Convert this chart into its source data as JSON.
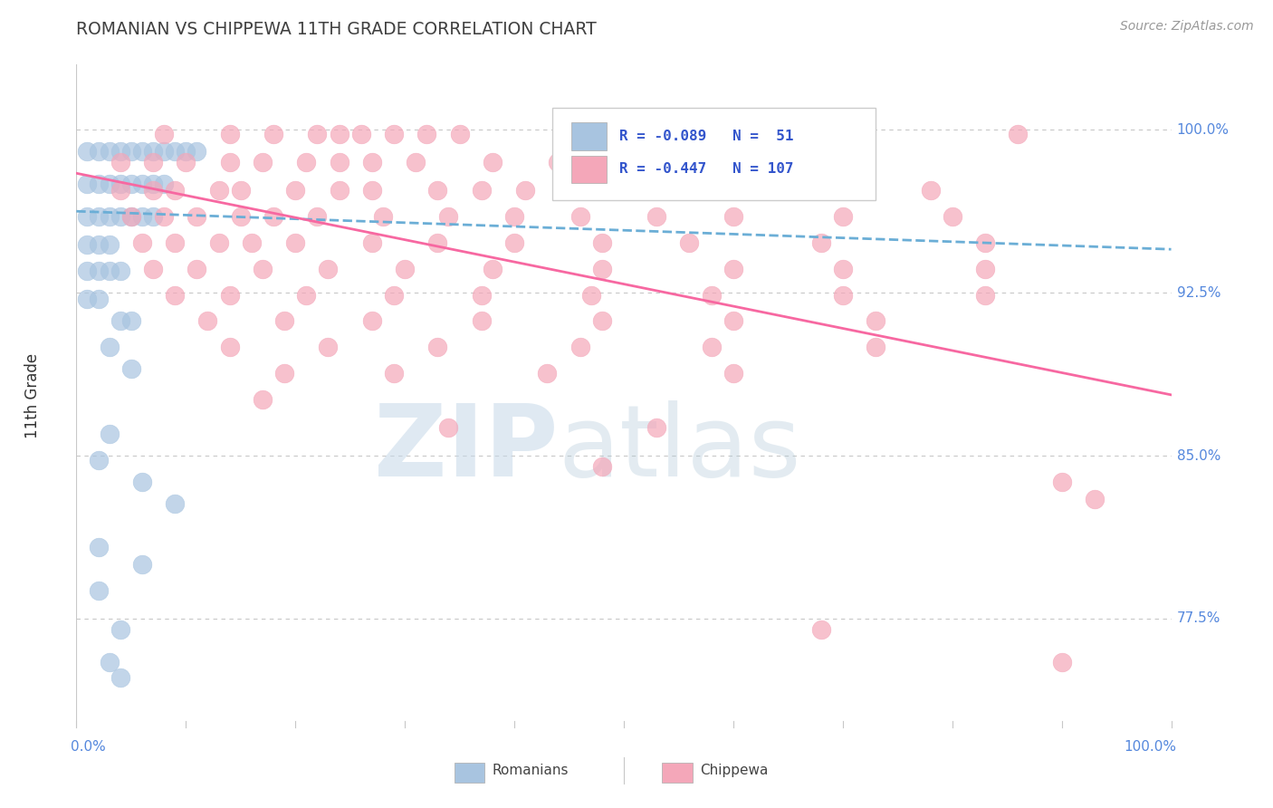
{
  "title": "ROMANIAN VS CHIPPEWA 11TH GRADE CORRELATION CHART",
  "source": "Source: ZipAtlas.com",
  "ylabel": "11th Grade",
  "y_tick_vals": [
    0.775,
    0.85,
    0.925,
    1.0
  ],
  "y_tick_labels": [
    "77.5%",
    "85.0%",
    "92.5%",
    "100.0%"
  ],
  "xlim": [
    0.0,
    1.0
  ],
  "ylim": [
    0.725,
    1.03
  ],
  "legend_romanian_R": "-0.089",
  "legend_romanian_N": "51",
  "legend_chippewa_R": "-0.447",
  "legend_chippewa_N": "107",
  "romanian_color": "#a8c4e0",
  "chippewa_color": "#f4a7b9",
  "romanian_line_color": "#6baed6",
  "chippewa_line_color": "#f768a1",
  "background_color": "#ffffff",
  "grid_color": "#c8c8c8",
  "title_color": "#404040",
  "axis_color": "#888888",
  "tick_label_color": "#5588dd",
  "romanian_scatter": [
    [
      0.01,
      0.99
    ],
    [
      0.02,
      0.99
    ],
    [
      0.03,
      0.99
    ],
    [
      0.04,
      0.99
    ],
    [
      0.05,
      0.99
    ],
    [
      0.06,
      0.99
    ],
    [
      0.07,
      0.99
    ],
    [
      0.08,
      0.99
    ],
    [
      0.09,
      0.99
    ],
    [
      0.1,
      0.99
    ],
    [
      0.11,
      0.99
    ],
    [
      0.01,
      0.975
    ],
    [
      0.02,
      0.975
    ],
    [
      0.03,
      0.975
    ],
    [
      0.04,
      0.975
    ],
    [
      0.05,
      0.975
    ],
    [
      0.06,
      0.975
    ],
    [
      0.07,
      0.975
    ],
    [
      0.08,
      0.975
    ],
    [
      0.01,
      0.96
    ],
    [
      0.02,
      0.96
    ],
    [
      0.03,
      0.96
    ],
    [
      0.04,
      0.96
    ],
    [
      0.05,
      0.96
    ],
    [
      0.06,
      0.96
    ],
    [
      0.07,
      0.96
    ],
    [
      0.01,
      0.947
    ],
    [
      0.02,
      0.947
    ],
    [
      0.03,
      0.947
    ],
    [
      0.01,
      0.935
    ],
    [
      0.02,
      0.935
    ],
    [
      0.03,
      0.935
    ],
    [
      0.04,
      0.935
    ],
    [
      0.01,
      0.922
    ],
    [
      0.02,
      0.922
    ],
    [
      0.04,
      0.912
    ],
    [
      0.05,
      0.912
    ],
    [
      0.03,
      0.9
    ],
    [
      0.05,
      0.89
    ],
    [
      0.03,
      0.86
    ],
    [
      0.02,
      0.848
    ],
    [
      0.06,
      0.838
    ],
    [
      0.09,
      0.828
    ],
    [
      0.02,
      0.808
    ],
    [
      0.06,
      0.8
    ],
    [
      0.02,
      0.788
    ],
    [
      0.04,
      0.77
    ],
    [
      0.03,
      0.755
    ],
    [
      0.04,
      0.748
    ]
  ],
  "chippewa_scatter": [
    [
      0.08,
      0.998
    ],
    [
      0.14,
      0.998
    ],
    [
      0.18,
      0.998
    ],
    [
      0.22,
      0.998
    ],
    [
      0.24,
      0.998
    ],
    [
      0.26,
      0.998
    ],
    [
      0.29,
      0.998
    ],
    [
      0.32,
      0.998
    ],
    [
      0.35,
      0.998
    ],
    [
      0.52,
      0.998
    ],
    [
      0.86,
      0.998
    ],
    [
      0.04,
      0.985
    ],
    [
      0.07,
      0.985
    ],
    [
      0.1,
      0.985
    ],
    [
      0.14,
      0.985
    ],
    [
      0.17,
      0.985
    ],
    [
      0.21,
      0.985
    ],
    [
      0.24,
      0.985
    ],
    [
      0.27,
      0.985
    ],
    [
      0.31,
      0.985
    ],
    [
      0.38,
      0.985
    ],
    [
      0.44,
      0.985
    ],
    [
      0.48,
      0.985
    ],
    [
      0.58,
      0.985
    ],
    [
      0.68,
      0.985
    ],
    [
      0.04,
      0.972
    ],
    [
      0.07,
      0.972
    ],
    [
      0.09,
      0.972
    ],
    [
      0.13,
      0.972
    ],
    [
      0.15,
      0.972
    ],
    [
      0.2,
      0.972
    ],
    [
      0.24,
      0.972
    ],
    [
      0.27,
      0.972
    ],
    [
      0.33,
      0.972
    ],
    [
      0.37,
      0.972
    ],
    [
      0.41,
      0.972
    ],
    [
      0.5,
      0.972
    ],
    [
      0.63,
      0.972
    ],
    [
      0.78,
      0.972
    ],
    [
      0.05,
      0.96
    ],
    [
      0.08,
      0.96
    ],
    [
      0.11,
      0.96
    ],
    [
      0.15,
      0.96
    ],
    [
      0.18,
      0.96
    ],
    [
      0.22,
      0.96
    ],
    [
      0.28,
      0.96
    ],
    [
      0.34,
      0.96
    ],
    [
      0.4,
      0.96
    ],
    [
      0.46,
      0.96
    ],
    [
      0.53,
      0.96
    ],
    [
      0.6,
      0.96
    ],
    [
      0.7,
      0.96
    ],
    [
      0.8,
      0.96
    ],
    [
      0.06,
      0.948
    ],
    [
      0.09,
      0.948
    ],
    [
      0.13,
      0.948
    ],
    [
      0.16,
      0.948
    ],
    [
      0.2,
      0.948
    ],
    [
      0.27,
      0.948
    ],
    [
      0.33,
      0.948
    ],
    [
      0.4,
      0.948
    ],
    [
      0.48,
      0.948
    ],
    [
      0.56,
      0.948
    ],
    [
      0.68,
      0.948
    ],
    [
      0.83,
      0.948
    ],
    [
      0.07,
      0.936
    ],
    [
      0.11,
      0.936
    ],
    [
      0.17,
      0.936
    ],
    [
      0.23,
      0.936
    ],
    [
      0.3,
      0.936
    ],
    [
      0.38,
      0.936
    ],
    [
      0.48,
      0.936
    ],
    [
      0.6,
      0.936
    ],
    [
      0.7,
      0.936
    ],
    [
      0.83,
      0.936
    ],
    [
      0.09,
      0.924
    ],
    [
      0.14,
      0.924
    ],
    [
      0.21,
      0.924
    ],
    [
      0.29,
      0.924
    ],
    [
      0.37,
      0.924
    ],
    [
      0.47,
      0.924
    ],
    [
      0.58,
      0.924
    ],
    [
      0.7,
      0.924
    ],
    [
      0.83,
      0.924
    ],
    [
      0.12,
      0.912
    ],
    [
      0.19,
      0.912
    ],
    [
      0.27,
      0.912
    ],
    [
      0.37,
      0.912
    ],
    [
      0.48,
      0.912
    ],
    [
      0.6,
      0.912
    ],
    [
      0.73,
      0.912
    ],
    [
      0.14,
      0.9
    ],
    [
      0.23,
      0.9
    ],
    [
      0.33,
      0.9
    ],
    [
      0.46,
      0.9
    ],
    [
      0.58,
      0.9
    ],
    [
      0.73,
      0.9
    ],
    [
      0.19,
      0.888
    ],
    [
      0.29,
      0.888
    ],
    [
      0.43,
      0.888
    ],
    [
      0.6,
      0.888
    ],
    [
      0.17,
      0.876
    ],
    [
      0.34,
      0.863
    ],
    [
      0.53,
      0.863
    ],
    [
      0.48,
      0.845
    ],
    [
      0.9,
      0.838
    ],
    [
      0.93,
      0.83
    ],
    [
      0.68,
      0.77
    ],
    [
      0.9,
      0.755
    ]
  ],
  "rom_line_x0": 0.0,
  "rom_line_y0": 0.9625,
  "rom_line_x1": 1.0,
  "rom_line_y1": 0.945,
  "chi_line_x0": 0.0,
  "chi_line_y0": 0.98,
  "chi_line_x1": 1.0,
  "chi_line_y1": 0.878
}
